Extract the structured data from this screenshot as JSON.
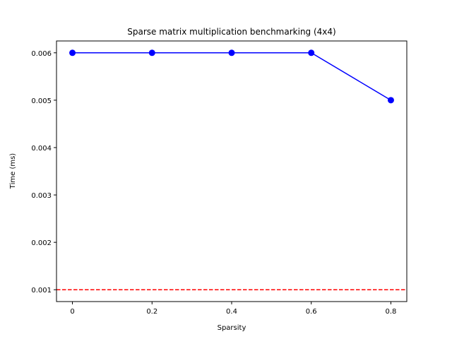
{
  "chart_data": {
    "type": "line",
    "title": "Sparse matrix multiplication benchmarking (4x4)",
    "xlabel": "Sparsity",
    "ylabel": "Time (ms)",
    "x_ticks": [
      0,
      0.2,
      0.4,
      0.6,
      0.8
    ],
    "x_tick_labels": [
      "0",
      "0.2",
      "0.4",
      "0.6",
      "0.8"
    ],
    "y_ticks": [
      0.001,
      0.002,
      0.003,
      0.004,
      0.005,
      0.006
    ],
    "y_tick_labels": [
      "0.001",
      "0.002",
      "0.003",
      "0.004",
      "0.005",
      "0.006"
    ],
    "xlim": [
      -0.04,
      0.84
    ],
    "ylim": [
      0.00075,
      0.00625
    ],
    "grid": false,
    "series": [
      {
        "x": [
          0,
          0.2,
          0.4,
          0.6,
          0.8
        ],
        "values": [
          0.006,
          0.006,
          0.006,
          0.006,
          0.005
        ],
        "color": "#0000ff",
        "marker": "circle"
      }
    ],
    "reference_lines": [
      {
        "orientation": "horizontal",
        "y": 0.001,
        "style": "dashed",
        "color": "#ff0000"
      }
    ]
  }
}
